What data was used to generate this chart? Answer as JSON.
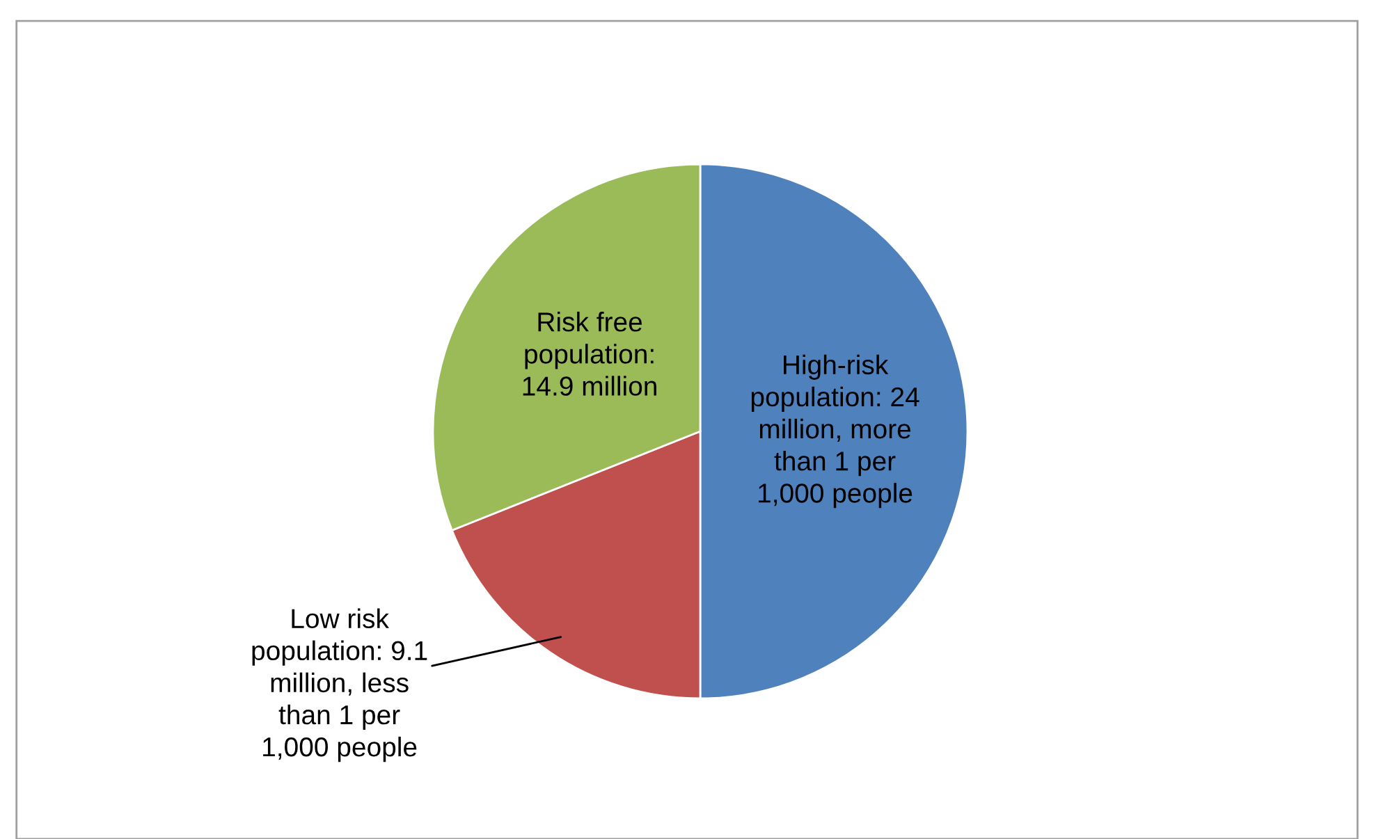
{
  "chart_data": {
    "type": "pie",
    "categories": [
      "High-risk\npopulation: 24\nmillion, more\nthan 1 per\n1,000 people",
      "Low risk\npopulation: 9.1\nmillion, less\nthan 1 per\n1,000 people",
      "Risk free\npopulation:\n14.9 million"
    ],
    "values": [
      24,
      9.1,
      14.9
    ],
    "colors": [
      "#4f81bd",
      "#c0504d",
      "#9bbb59"
    ],
    "legend": false
  }
}
